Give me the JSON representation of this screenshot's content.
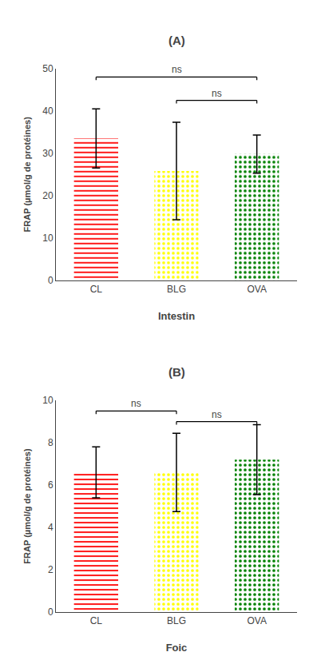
{
  "chart_data": [
    {
      "type": "bar",
      "title": "(A)",
      "categories": [
        "CL",
        "BLG",
        "OVA"
      ],
      "values": [
        33.5,
        25.8,
        29.8
      ],
      "errors": [
        7.0,
        11.5,
        4.5
      ],
      "colors": [
        "#FF0000",
        "#FFFF00",
        "#008000"
      ],
      "ylim": [
        0,
        50
      ],
      "yticks": [
        0,
        10,
        20,
        30,
        40,
        50
      ],
      "ylabel": "FRAP (µmol/g de protéines)",
      "xlabel": "Intestin",
      "grid": false,
      "annotations": [
        {
          "text": "ns",
          "from": "CL",
          "to": "OVA",
          "y": 48.0
        },
        {
          "text": "ns",
          "from": "BLG",
          "to": "OVA",
          "y": 42.5
        }
      ]
    },
    {
      "type": "bar",
      "title": "(B)",
      "categories": [
        "CL",
        "BLG",
        "OVA"
      ],
      "values": [
        6.6,
        6.6,
        7.2
      ],
      "errors": [
        1.2,
        1.85,
        1.65
      ],
      "colors": [
        "#FF0000",
        "#FFFF00",
        "#008000"
      ],
      "ylim": [
        0,
        10
      ],
      "yticks": [
        0,
        2,
        4,
        6,
        8,
        10
      ],
      "ylabel": "FRAP (µmol/g de protéines)",
      "xlabel": "Foic",
      "grid": false,
      "annotations": [
        {
          "text": "ns",
          "from": "CL",
          "to": "BLG",
          "y": 9.5
        },
        {
          "text": "ns",
          "from": "BLG",
          "to": "OVA",
          "y": 9.0
        }
      ]
    }
  ]
}
